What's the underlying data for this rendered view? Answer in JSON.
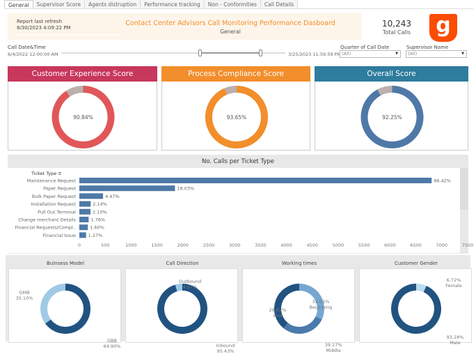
{
  "tabs": [
    "General",
    "Supervisor Score",
    "Agents distruption",
    "Performance tracking",
    "Non - Conformities",
    "Call Details"
  ],
  "header": {
    "refresh_label": "Report last refresh",
    "refresh_time": "8/30/2023 4:09:22 PM",
    "title": "Contact Center Advisors Call Monitoring Performance Dasboard",
    "subtitle": "General",
    "total_calls": "10,243",
    "total_label": "Total Calls",
    "logo_letter": "g"
  },
  "filters": {
    "date_label": "Call Date&Time",
    "date_start": "6/4/2022 12:00:00 AM",
    "date_end": "3/25/2023 11:59:59 PM",
    "quarter_label": "Quarter of Call Date",
    "quarter_value": "(All)",
    "supervisor_label": "Supervisor Name",
    "supervisor_value": "(All)"
  },
  "scores": [
    {
      "title": "Customer Experience Score",
      "value": 90.84,
      "label": "90.84%",
      "header_color": "#c8375c",
      "ring_color": "#e15759"
    },
    {
      "title": "Process Compliance Score",
      "value": 93.65,
      "label": "93.65%",
      "header_color": "#f28e2b",
      "ring_color": "#f28e2b"
    },
    {
      "title": "Overall Score",
      "value": 92.25,
      "label": "92.25%",
      "header_color": "#2e7c9e",
      "ring_color": "#4e79a7"
    }
  ],
  "chart_data": [
    {
      "type": "bar",
      "title": "No. Calls per Ticket Type",
      "ylabel": "Ticket Type",
      "orientation": "horizontal",
      "xlim": [
        0,
        7500
      ],
      "xticks": [
        "0",
        "500",
        "1000",
        "1500",
        "2000",
        "2500",
        "3000",
        "3500",
        "4000",
        "4500",
        "5000",
        "5500",
        "6000",
        "6500",
        "7000",
        "7500"
      ],
      "categories": [
        "Maintenance Request",
        "Paper Request",
        "Bulk Paper Request",
        "Installation Request",
        "Pull Out Terminal",
        "Change merchant Details",
        "Financial Requests/Compl..",
        "Financial Issue"
      ],
      "values": [
        6804,
        1847,
        458,
        219,
        215,
        180,
        164,
        130
      ],
      "labels": [
        "66.42%",
        "18.03%",
        "4.47%",
        "2.14%",
        "2.10%",
        "1.76%",
        "1.60%",
        "1.27%"
      ],
      "color": "#4e79a7"
    },
    {
      "type": "pie",
      "title": "Buinsess Model",
      "slices": [
        {
          "name": "GMB",
          "value": 35.1,
          "label": "35.10%",
          "color": "#9fcae6"
        },
        {
          "name": "GBB",
          "value": 64.9,
          "label": "64.90%",
          "color": "#215381"
        }
      ]
    },
    {
      "type": "pie",
      "title": "Call Direction",
      "slices": [
        {
          "name": "Outbound",
          "value": 4.57,
          "label": "4.57%",
          "color": "#9fcae6"
        },
        {
          "name": "Inbound",
          "value": 95.43,
          "label": "95.43%",
          "color": "#215381"
        }
      ]
    },
    {
      "type": "pie",
      "title": "Working times",
      "slices": [
        {
          "name": "Beginning",
          "value": 32.01,
          "label": "32.01%",
          "color": "#76a7d1"
        },
        {
          "name": "End",
          "value": 28.82,
          "label": "28.82%",
          "color": "#4a7aab"
        },
        {
          "name": "Middle",
          "value": 39.17,
          "label": "39.17%",
          "color": "#215381"
        }
      ]
    },
    {
      "type": "pie",
      "title": "Customer Gender",
      "slices": [
        {
          "name": "Female",
          "value": 6.72,
          "label": "6.72%",
          "color": "#b9dcf0"
        },
        {
          "name": "Male",
          "value": 93.28,
          "label": "93.28%",
          "color": "#215381"
        }
      ]
    }
  ]
}
